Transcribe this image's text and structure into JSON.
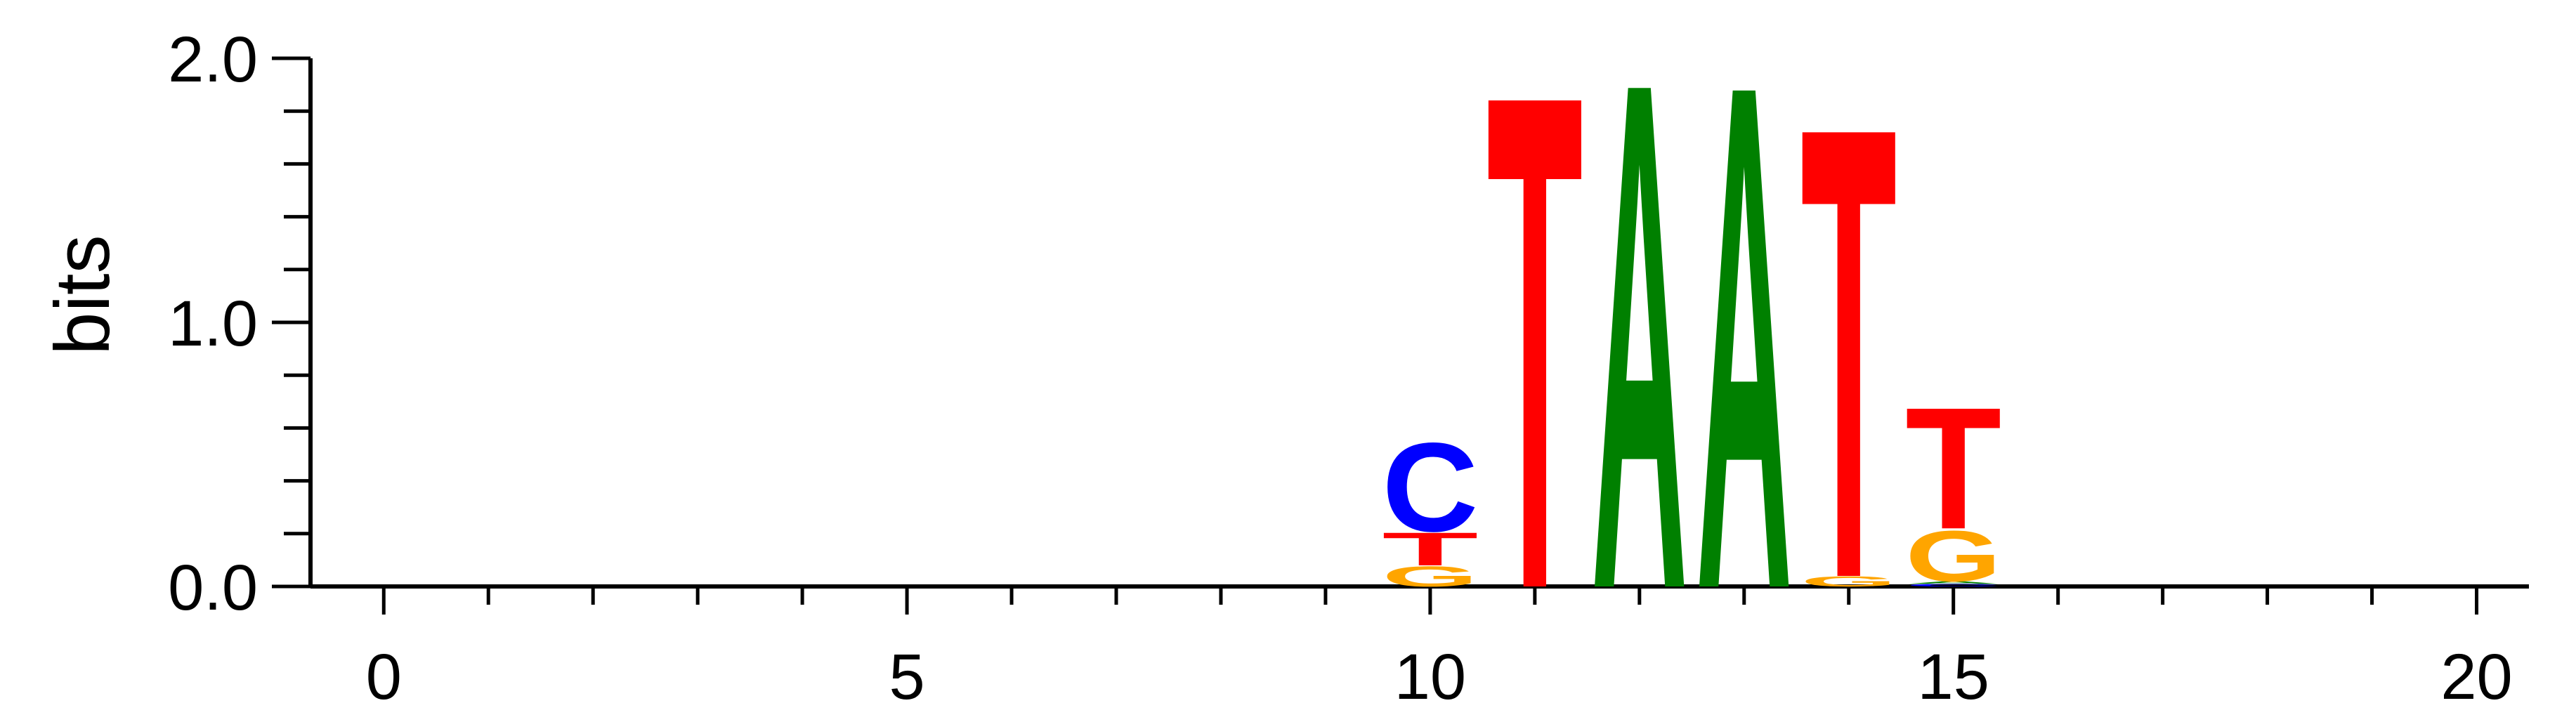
{
  "chart_data": {
    "type": "sequence-logo",
    "title": "",
    "xlabel": "",
    "ylabel": "bits",
    "xlim": [
      -0.7,
      20.5
    ],
    "ylim": [
      0,
      2.0
    ],
    "x_ticks": [
      0,
      5,
      10,
      15,
      20
    ],
    "x_tick_labels": [
      "0",
      "5",
      "10",
      "15",
      "20"
    ],
    "y_ticks": [
      0.0,
      1.0,
      2.0
    ],
    "y_tick_labels": [
      "0.0",
      "1.0",
      "2.0"
    ],
    "grid": false,
    "colors": {
      "A": "#008000",
      "C": "#0000ff",
      "G": "#ffa500",
      "T": "#ff0000"
    },
    "positions": [
      {
        "x": 10,
        "letters": [
          {
            "base": "G",
            "bits": 0.08
          },
          {
            "base": "T",
            "bits": 0.13
          },
          {
            "base": "C",
            "bits": 0.35
          }
        ]
      },
      {
        "x": 11,
        "letters": [
          {
            "base": "T",
            "bits": 1.95
          }
        ]
      },
      {
        "x": 12,
        "letters": [
          {
            "base": "A",
            "bits": 2.0
          }
        ]
      },
      {
        "x": 13,
        "letters": [
          {
            "base": "A",
            "bits": 1.99
          }
        ]
      },
      {
        "x": 14,
        "letters": [
          {
            "base": "G",
            "bits": 0.04
          },
          {
            "base": "T",
            "bits": 1.78
          }
        ]
      },
      {
        "x": 15,
        "letters": [
          {
            "base": "C",
            "bits": 0.01
          },
          {
            "base": "A",
            "bits": 0.01
          },
          {
            "base": "G",
            "bits": 0.2
          },
          {
            "base": "T",
            "bits": 0.48
          }
        ]
      }
    ]
  }
}
